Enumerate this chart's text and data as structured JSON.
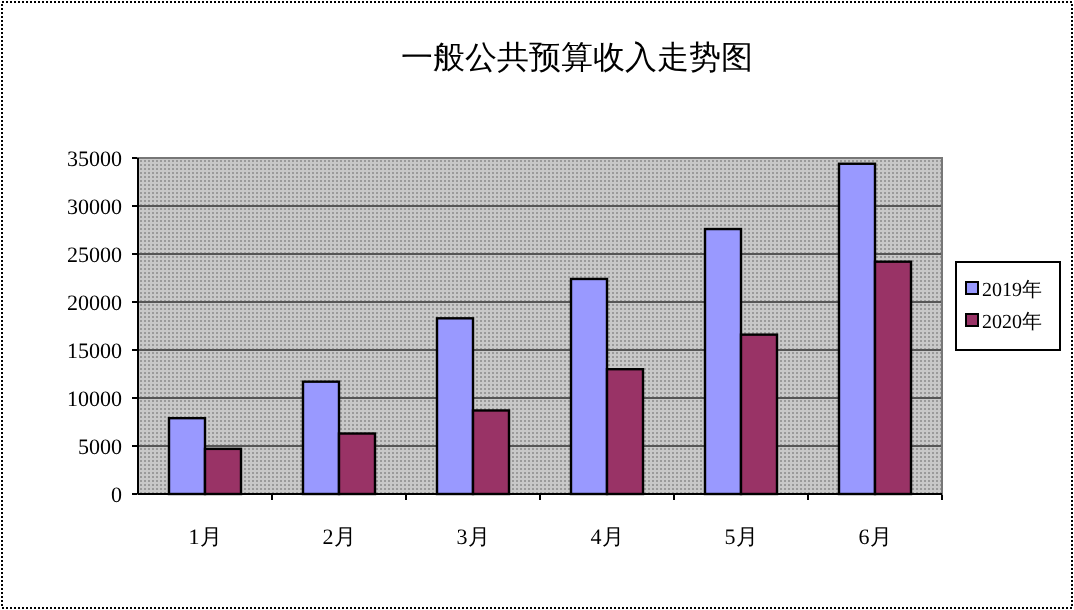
{
  "chart_data": {
    "type": "bar",
    "title": "一般公共预算收入走势图",
    "categories": [
      "1月",
      "2月",
      "3月",
      "4月",
      "5月",
      "6月"
    ],
    "series": [
      {
        "name": "2019年",
        "color": "#9999ff",
        "values": [
          7900,
          11700,
          18300,
          22400,
          27600,
          34400
        ]
      },
      {
        "name": "2020年",
        "color": "#993366",
        "values": [
          4700,
          6300,
          8700,
          13000,
          16600,
          24200
        ]
      }
    ],
    "ylim": [
      0,
      35000
    ],
    "yticks": [
      0,
      5000,
      10000,
      15000,
      20000,
      25000,
      30000,
      35000
    ],
    "grid": "y",
    "legend": "right"
  }
}
